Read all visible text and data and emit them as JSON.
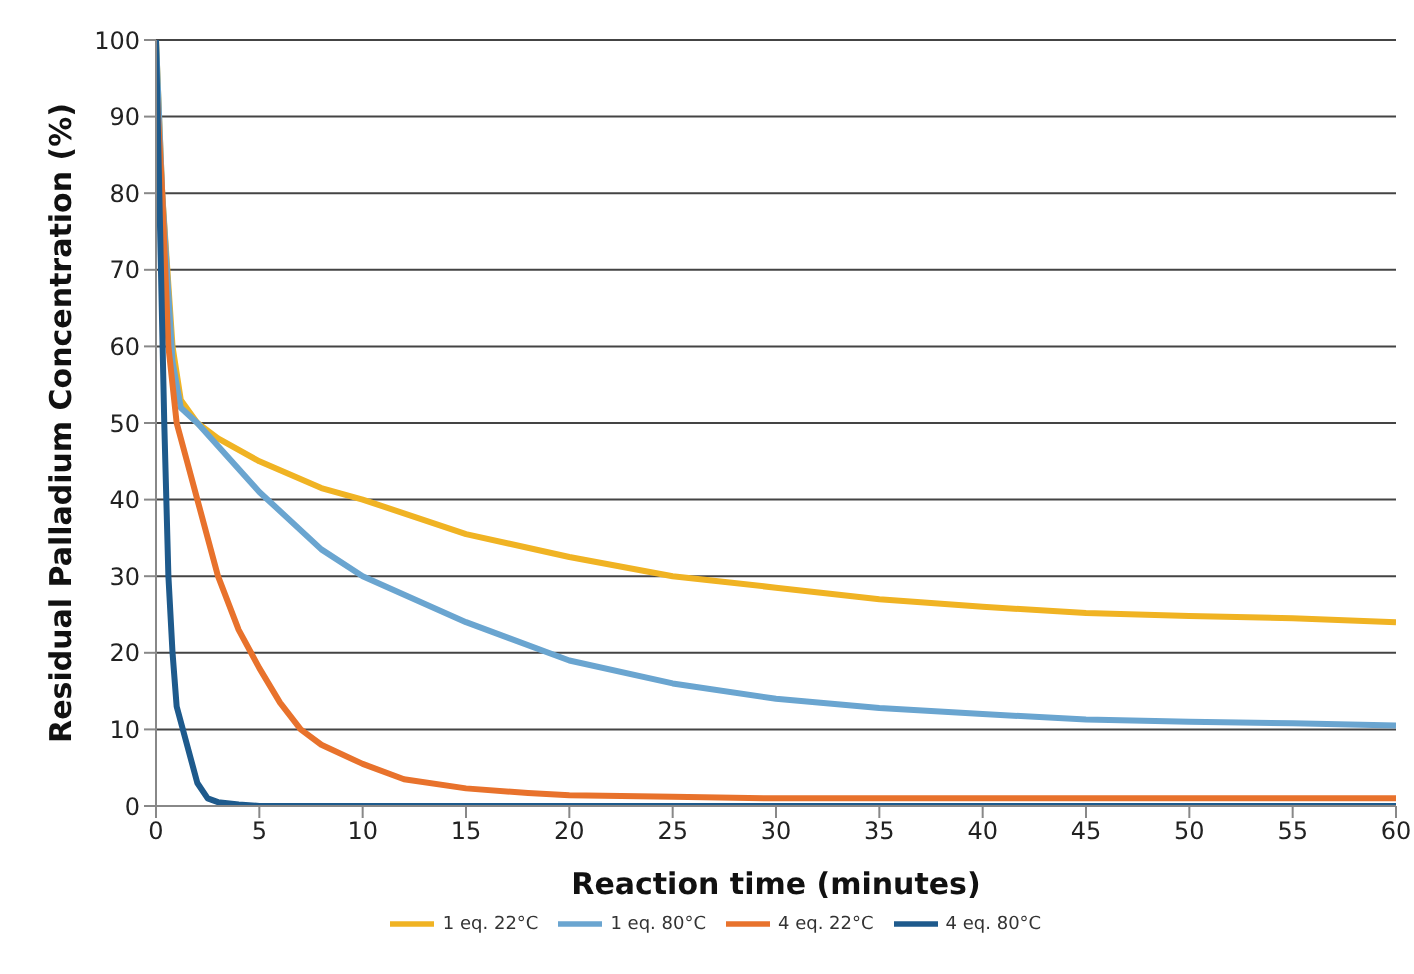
{
  "chart_data": {
    "type": "line",
    "xlabel": "Reaction time (minutes)",
    "ylabel": "Residual Palladium Concentration (%)",
    "xlim": [
      0,
      60
    ],
    "xticks": [
      0,
      5,
      10,
      15,
      20,
      25,
      30,
      35,
      40,
      45,
      50,
      55,
      60
    ],
    "ylim": [
      0,
      100
    ],
    "yticks": [
      0,
      10,
      20,
      30,
      40,
      50,
      60,
      70,
      80,
      90,
      100
    ],
    "grid": "y",
    "legend": "bottom",
    "marker": "none",
    "line_style": "solid",
    "series": [
      {
        "name": "1 eq. 22°C",
        "color": "#f0b323",
        "x": [
          0,
          0.3,
          0.8,
          1.2,
          2,
          3,
          5,
          8,
          10,
          15,
          20,
          25,
          30,
          35,
          40,
          45,
          50,
          55,
          60
        ],
        "values": [
          100,
          80,
          60,
          53,
          50,
          48,
          45,
          41.5,
          40,
          35.5,
          32.5,
          30,
          28.5,
          27,
          26,
          25.2,
          24.8,
          24.5,
          24
        ]
      },
      {
        "name": "1 eq. 80°C",
        "color": "#6aa5d0",
        "x": [
          0,
          0.3,
          0.8,
          1.2,
          2,
          3,
          5,
          8,
          10,
          15,
          20,
          25,
          30,
          35,
          40,
          45,
          50,
          55,
          60
        ],
        "values": [
          100,
          80,
          58,
          52,
          50,
          47,
          41,
          33.5,
          30,
          24,
          19,
          16,
          14,
          12.8,
          12,
          11.3,
          11,
          10.8,
          10.5
        ]
      },
      {
        "name": "4 eq. 22°C",
        "color": "#e8722c",
        "x": [
          0,
          0.3,
          0.6,
          1,
          1.5,
          2,
          3,
          4,
          5,
          6,
          7,
          8,
          10,
          12,
          15,
          18,
          20,
          25,
          30,
          60
        ],
        "values": [
          95,
          80,
          60,
          50,
          45,
          40,
          30,
          23,
          18,
          13.5,
          10,
          8,
          5.5,
          3.5,
          2.3,
          1.7,
          1.4,
          1.2,
          1,
          1
        ]
      },
      {
        "name": "4 eq. 80°C",
        "color": "#1e5a8c",
        "x": [
          0,
          0.2,
          0.4,
          0.6,
          0.8,
          1,
          1.5,
          2,
          2.5,
          3,
          4,
          5,
          60
        ],
        "values": [
          100,
          75,
          50,
          30,
          20,
          13,
          8,
          3,
          1,
          0.5,
          0.2,
          0,
          0
        ]
      }
    ]
  }
}
